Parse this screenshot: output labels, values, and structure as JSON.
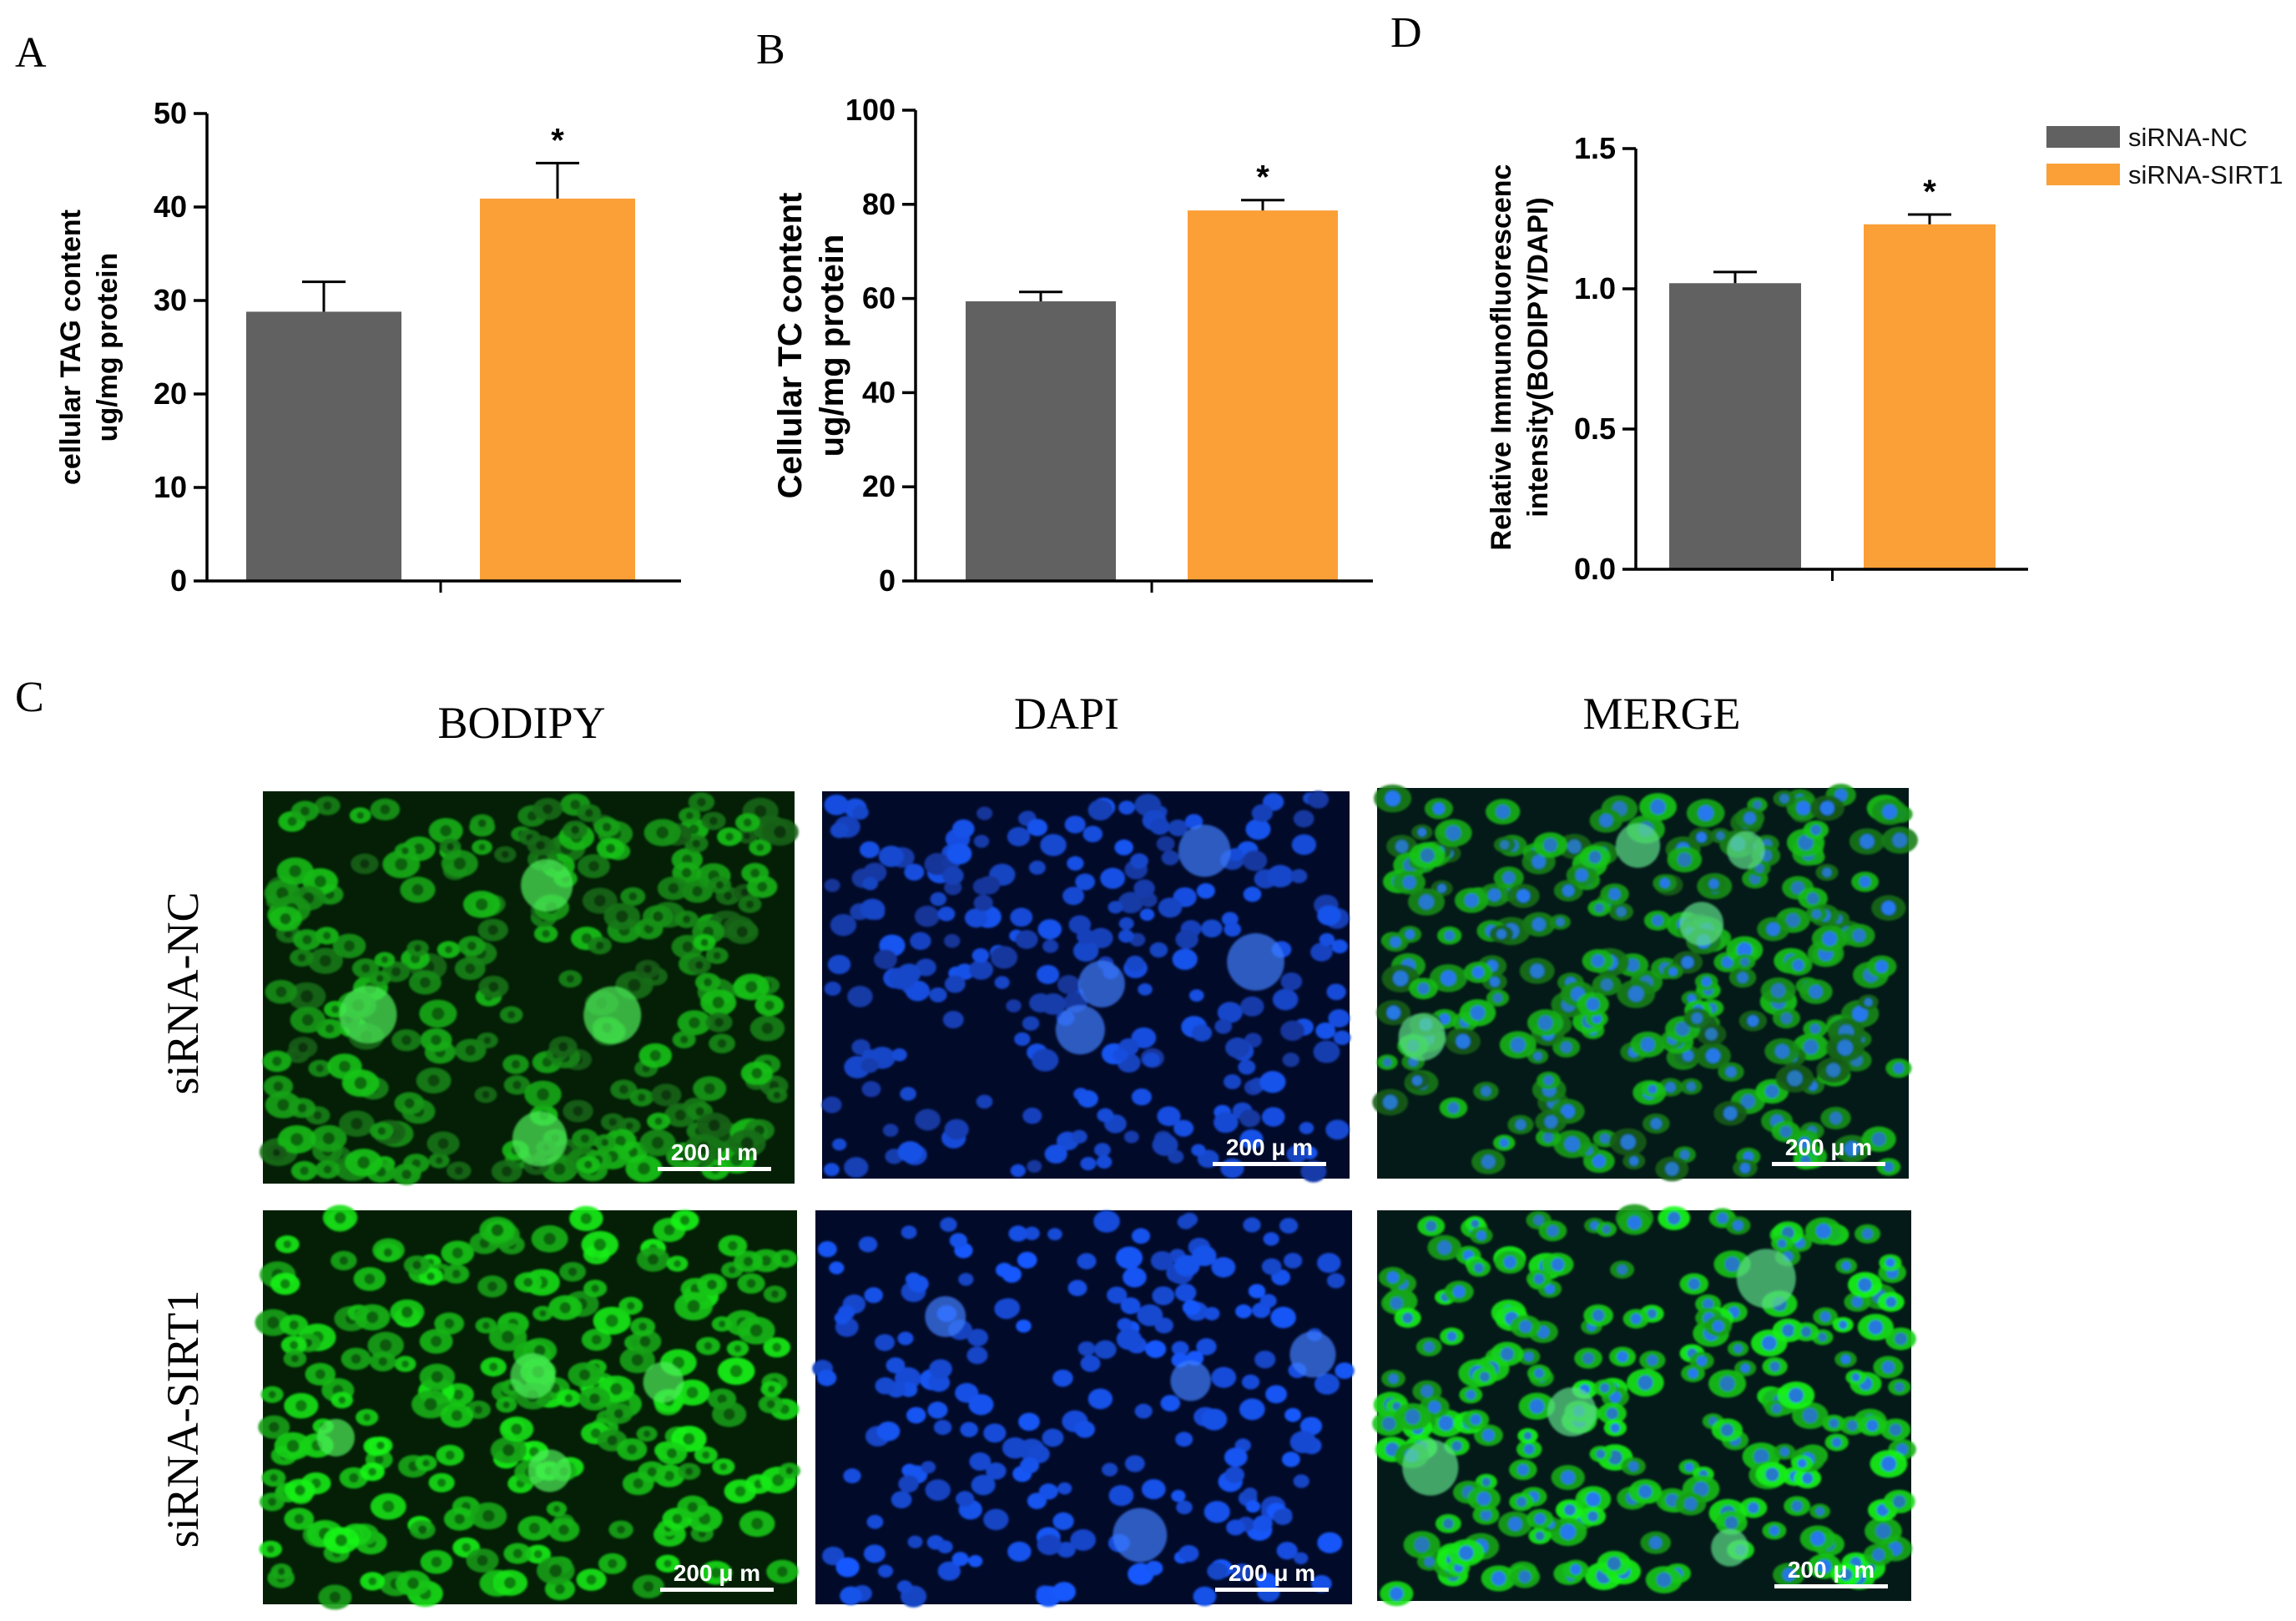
{
  "figure": {
    "panels": {
      "A": "A",
      "B": "B",
      "C": "C",
      "D": "D"
    }
  },
  "legend": {
    "items": [
      {
        "label": "siRNA-NC",
        "color": "#616161"
      },
      {
        "label": "siRNA-SIRT1",
        "color": "#fb9f37"
      }
    ]
  },
  "chart_data": [
    {
      "panel": "A",
      "type": "bar",
      "categories": [
        "siRNA-NC",
        "siRNA-SIRT1"
      ],
      "values": [
        28.8,
        40.9
      ],
      "errors": [
        3.2,
        3.8
      ],
      "significance": [
        "",
        "*"
      ],
      "ylabel": [
        "cellular TAG content",
        "ug/mg protein"
      ],
      "ylim": [
        0,
        50
      ],
      "yticks": [
        0,
        10,
        20,
        30,
        40,
        50
      ],
      "ytick_labels": [
        "0",
        "10",
        "20",
        "30",
        "40",
        "50"
      ],
      "colors": [
        "#616161",
        "#fb9f37"
      ]
    },
    {
      "panel": "B",
      "type": "bar",
      "categories": [
        "siRNA-NC",
        "siRNA-SIRT1"
      ],
      "values": [
        59.4,
        78.7
      ],
      "errors": [
        2.0,
        2.2
      ],
      "significance": [
        "",
        "*"
      ],
      "ylabel": [
        "Cellular TC content",
        "ug/mg protein"
      ],
      "ylim": [
        0,
        100
      ],
      "yticks": [
        0,
        20,
        40,
        60,
        80,
        100
      ],
      "ytick_labels": [
        "0",
        "20",
        "40",
        "60",
        "80",
        "100"
      ],
      "colors": [
        "#616161",
        "#fb9f37"
      ]
    },
    {
      "panel": "D",
      "type": "bar",
      "categories": [
        "siRNA-NC",
        "siRNA-SIRT1"
      ],
      "values": [
        1.02,
        1.23
      ],
      "errors": [
        0.04,
        0.035
      ],
      "significance": [
        "",
        "*"
      ],
      "ylabel": [
        "Relative Immunofluorescenc",
        "intensity(BODIPY/DAPI)"
      ],
      "ylim": [
        0,
        1.5
      ],
      "yticks": [
        0,
        0.5,
        1.0,
        1.5
      ],
      "ytick_labels": [
        "0.0",
        "0.5",
        "1.0",
        "1.5"
      ],
      "colors": [
        "#616161",
        "#fb9f37"
      ]
    }
  ],
  "micrographs": {
    "columns": [
      "BODIPY",
      "DAPI",
      "MERGE"
    ],
    "rows": [
      "siRNA-NC",
      "siRNA-SIRT1"
    ],
    "scale_bar": "200 μ m"
  }
}
